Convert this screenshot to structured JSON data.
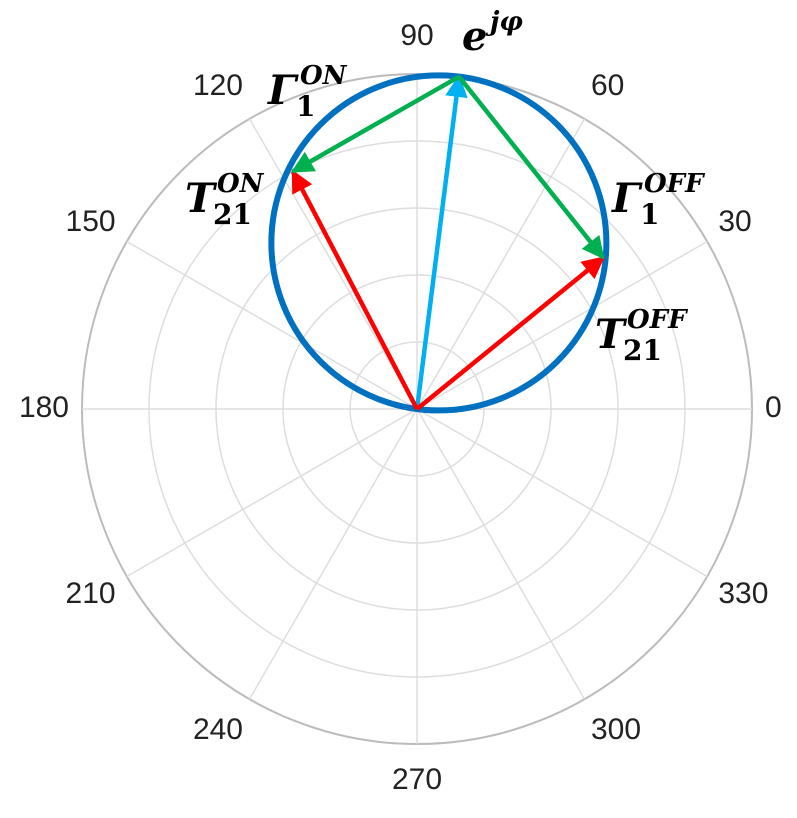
{
  "chart_data": {
    "type": "polar",
    "thetaticks": [
      0,
      30,
      60,
      90,
      120,
      150,
      180,
      210,
      240,
      270,
      300,
      330
    ],
    "rlim": [
      0,
      5
    ],
    "rticks": [
      1,
      2,
      3,
      4,
      5
    ],
    "grid": true,
    "circle": {
      "theta": 82.5,
      "r": 5.0,
      "color": "#0070c0"
    },
    "vectors": [
      {
        "label": {
          "base": "e",
          "sup": "jφ"
        },
        "color": "#00b0f0",
        "from": [
          0,
          0
        ],
        "to": [
          82.8,
          5.0
        ]
      },
      {
        "label": {
          "base": "T",
          "sub": "21",
          "sup": "ON"
        },
        "color": "#ff0000",
        "from": [
          0,
          0
        ],
        "to": [
          117.6,
          4.0
        ]
      },
      {
        "label": {
          "base": "T",
          "sub": "21",
          "sup": "OFF"
        },
        "color": "#ff0000",
        "from": [
          0,
          0
        ],
        "to": [
          39.1,
          3.58
        ]
      },
      {
        "label": {
          "base": "Γ",
          "sub": "1",
          "sup": "ON"
        },
        "color": "#00b050",
        "from": [
          82.8,
          5.0
        ],
        "to": [
          117.6,
          4.0
        ]
      },
      {
        "label": {
          "base": "Γ",
          "sub": "1",
          "sup": "OFF"
        },
        "color": "#00b050",
        "from": [
          82.8,
          5.0
        ],
        "to": [
          39.1,
          3.58
        ]
      }
    ]
  }
}
